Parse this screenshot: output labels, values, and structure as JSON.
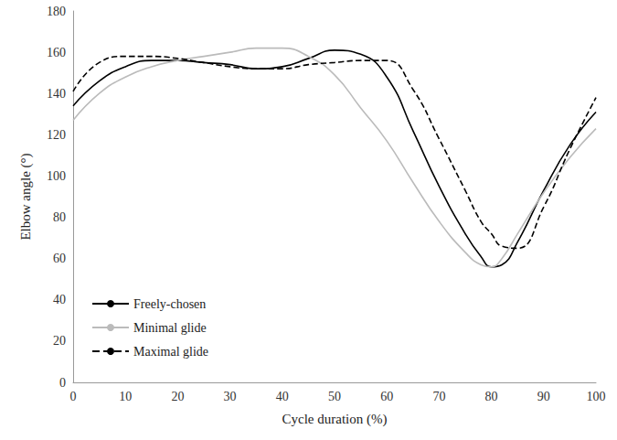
{
  "chart_data": {
    "type": "line",
    "x_label": "Cycle duration (%)",
    "y_label": "Elbow angle (°)",
    "x": [
      0,
      5,
      10,
      15,
      20,
      25,
      30,
      35,
      40,
      45,
      50,
      55,
      60,
      65,
      70,
      75,
      78,
      80,
      82,
      85,
      90,
      95,
      100
    ],
    "series": [
      {
        "name": "Freely-chosen",
        "color": "#000000",
        "line_style": "solid",
        "values": [
          134,
          146,
          153,
          156,
          156,
          155,
          154,
          152,
          153,
          157,
          161,
          159,
          148,
          122,
          95,
          72,
          61,
          56,
          57,
          68,
          93,
          115,
          131
        ]
      },
      {
        "name": "Minimal glide",
        "color": "#bbbbbb",
        "line_style": "solid",
        "values": [
          127,
          140,
          148,
          153,
          156,
          158,
          160,
          162,
          162,
          158,
          149,
          133,
          117,
          97,
          78,
          63,
          57,
          56,
          60,
          72,
          92,
          109,
          123
        ]
      },
      {
        "name": "Maximal glide",
        "color": "#000000",
        "line_style": "dashed",
        "values": [
          141,
          155,
          158,
          158,
          157,
          155,
          153,
          152,
          152,
          154,
          155,
          156,
          156,
          142,
          118,
          93,
          78,
          72,
          66,
          65,
          85,
          113,
          138
        ]
      }
    ],
    "xlim": [
      0,
      100
    ],
    "xticks": [
      0,
      10,
      20,
      30,
      40,
      50,
      60,
      70,
      80,
      90,
      100
    ],
    "ylim": [
      0,
      180
    ],
    "yticks": [
      0,
      20,
      40,
      60,
      80,
      100,
      120,
      140,
      160,
      180
    ],
    "grid": false,
    "legend": "lower left"
  }
}
